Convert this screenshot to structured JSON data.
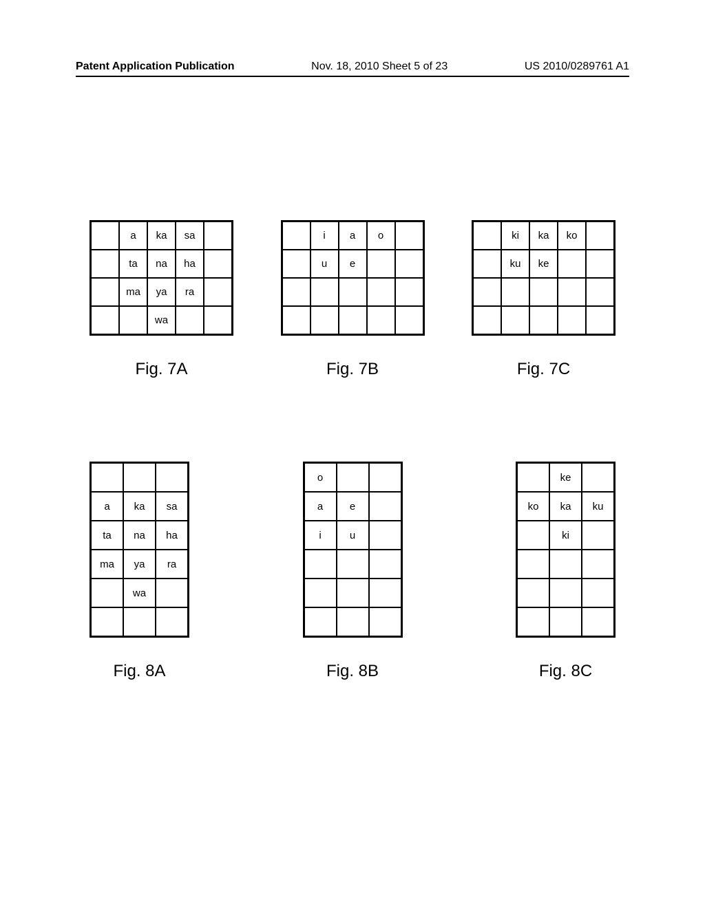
{
  "header": {
    "left": "Patent Application Publication",
    "center": "Nov. 18, 2010  Sheet 5 of 23",
    "right": "US 2010/0289761 A1"
  },
  "figures": {
    "row1": [
      {
        "label": "Fig. 7A",
        "cols": 5,
        "rows": 4,
        "cells": [
          [
            "",
            "a",
            "ka",
            "sa",
            ""
          ],
          [
            "",
            "ta",
            "na",
            "ha",
            ""
          ],
          [
            "",
            "ma",
            "ya",
            "ra",
            ""
          ],
          [
            "",
            "",
            "wa",
            "",
            ""
          ]
        ]
      },
      {
        "label": "Fig. 7B",
        "cols": 5,
        "rows": 4,
        "cells": [
          [
            "",
            "i",
            "a",
            "o",
            ""
          ],
          [
            "",
            "u",
            "e",
            "",
            ""
          ],
          [
            "",
            "",
            "",
            "",
            ""
          ],
          [
            "",
            "",
            "",
            "",
            ""
          ]
        ]
      },
      {
        "label": "Fig. 7C",
        "cols": 5,
        "rows": 4,
        "cells": [
          [
            "",
            "ki",
            "ka",
            "ko",
            ""
          ],
          [
            "",
            "ku",
            "ke",
            "",
            ""
          ],
          [
            "",
            "",
            "",
            "",
            ""
          ],
          [
            "",
            "",
            "",
            "",
            ""
          ]
        ]
      }
    ],
    "row2": [
      {
        "label": "Fig. 8A",
        "cols": 3,
        "rows": 6,
        "cells": [
          [
            "",
            "",
            ""
          ],
          [
            "a",
            "ka",
            "sa"
          ],
          [
            "ta",
            "na",
            "ha"
          ],
          [
            "ma",
            "ya",
            "ra"
          ],
          [
            "",
            "wa",
            ""
          ],
          [
            "",
            "",
            ""
          ]
        ]
      },
      {
        "label": "Fig. 8B",
        "cols": 3,
        "rows": 6,
        "cells": [
          [
            "o",
            "",
            ""
          ],
          [
            "a",
            "e",
            ""
          ],
          [
            "i",
            "u",
            ""
          ],
          [
            "",
            "",
            ""
          ],
          [
            "",
            "",
            ""
          ],
          [
            "",
            "",
            ""
          ]
        ]
      },
      {
        "label": "Fig. 8C",
        "cols": 3,
        "rows": 6,
        "cells": [
          [
            "",
            "ke",
            ""
          ],
          [
            "ko",
            "ka",
            "ku"
          ],
          [
            "",
            "ki",
            ""
          ],
          [
            "",
            "",
            ""
          ],
          [
            "",
            "",
            ""
          ],
          [
            "",
            "",
            ""
          ]
        ]
      }
    ]
  }
}
